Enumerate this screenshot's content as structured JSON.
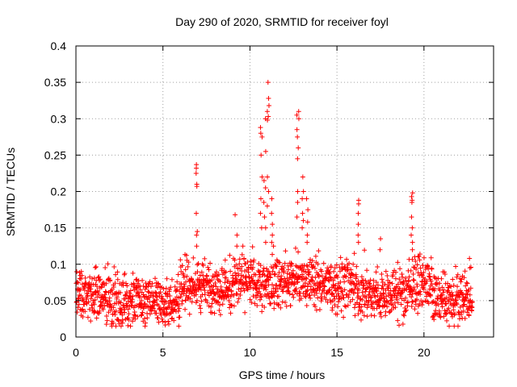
{
  "chart_data": {
    "type": "scatter",
    "title": "Day 290 of 2020, SRMTID for receiver foyl",
    "xlabel": "GPS time / hours",
    "ylabel": "SRMTID / TECUs",
    "xlim": [
      0,
      24
    ],
    "ylim": [
      0,
      0.4
    ],
    "grid": true,
    "marker_color": "#ff0000",
    "marker": "plus",
    "x_ticks": [
      0,
      5,
      10,
      15,
      20
    ],
    "x_tick_labels": [
      "0",
      "5",
      "10",
      "15",
      "20"
    ],
    "y_ticks": [
      0,
      0.05,
      0.1,
      0.15,
      0.2,
      0.25,
      0.3,
      0.35,
      0.4
    ],
    "y_tick_labels": [
      "0",
      "0.05",
      "0.1",
      "0.15",
      "0.2",
      "0.25",
      "0.3",
      "0.35",
      "0.4"
    ],
    "series": [
      {
        "name": "SRMTID",
        "x_range": [
          0,
          22.8
        ],
        "background_band": [
          0.02,
          0.12
        ],
        "bursts": [
          {
            "x": 6.95,
            "values": [
              0.237,
              0.232,
              0.225,
              0.21,
              0.207,
              0.17,
              0.145,
              0.14
            ]
          },
          {
            "x": 9.2,
            "values": [
              0.168,
              0.14,
              0.125
            ]
          },
          {
            "x": 10.65,
            "values": [
              0.288,
              0.28,
              0.275,
              0.25,
              0.22,
              0.19,
              0.17,
              0.15
            ]
          },
          {
            "x": 10.85,
            "values": [
              0.3,
              0.255,
              0.215,
              0.205,
              0.185,
              0.165,
              0.15,
              0.13
            ]
          },
          {
            "x": 11.05,
            "values": [
              0.35,
              0.328,
              0.318,
              0.31,
              0.303,
              0.298,
              0.22,
              0.2,
              0.18
            ]
          },
          {
            "x": 11.3,
            "values": [
              0.19,
              0.17,
              0.155,
              0.14,
              0.13
            ]
          },
          {
            "x": 12.75,
            "values": [
              0.31,
              0.305,
              0.3,
              0.285,
              0.275,
              0.26,
              0.245,
              0.2,
              0.185,
              0.165
            ]
          },
          {
            "x": 13.05,
            "values": [
              0.22,
              0.2,
              0.19,
              0.17,
              0.16,
              0.15
            ]
          },
          {
            "x": 13.3,
            "values": [
              0.19,
              0.175,
              0.158,
              0.14,
              0.13
            ]
          },
          {
            "x": 16.25,
            "values": [
              0.188,
              0.183,
              0.17,
              0.155,
              0.14,
              0.13
            ]
          },
          {
            "x": 17.45,
            "values": [
              0.135,
              0.12
            ]
          },
          {
            "x": 19.3,
            "values": [
              0.198,
              0.193,
              0.188,
              0.185,
              0.165,
              0.15,
              0.14,
              0.13,
              0.12
            ]
          },
          {
            "x": 22.6,
            "values": [
              0.108,
              0.095
            ]
          }
        ]
      }
    ]
  }
}
